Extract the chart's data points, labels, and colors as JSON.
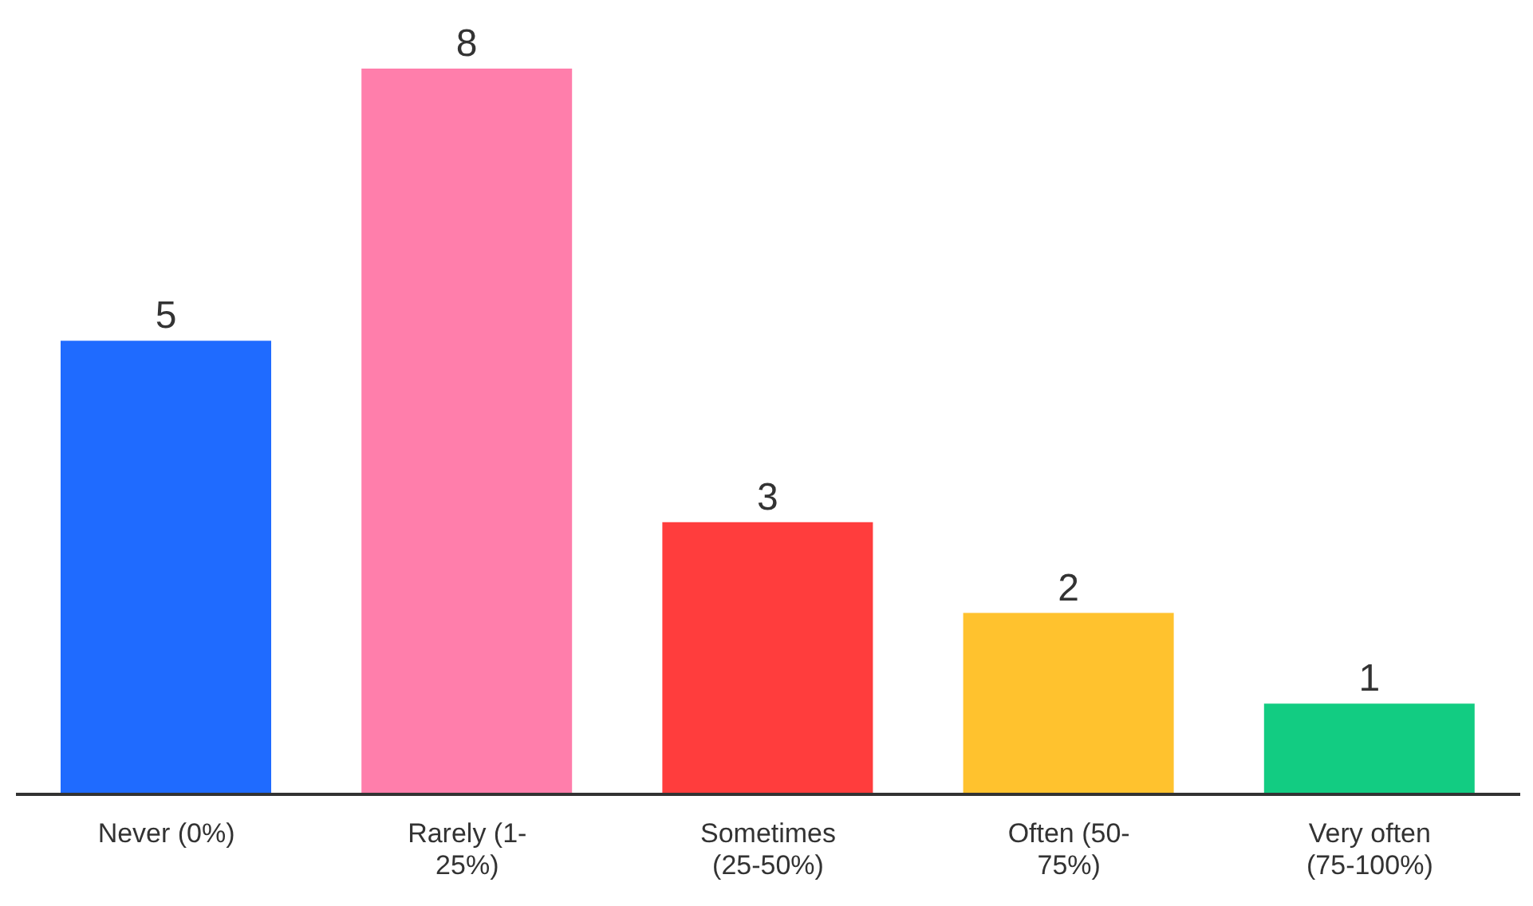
{
  "chart_data": {
    "type": "bar",
    "categories": [
      "Never (0%)",
      "Rarely (1-25%)",
      "Sometimes (25-50%)",
      "Often (50-75%)",
      "Very often (75-100%)"
    ],
    "values": [
      5,
      8,
      3,
      2,
      1
    ],
    "colors": [
      "#1f6bff",
      "#ff7eab",
      "#ff3d3d",
      "#ffc22e",
      "#12cc82"
    ],
    "data_labels": true,
    "grid": false,
    "legend": false
  }
}
